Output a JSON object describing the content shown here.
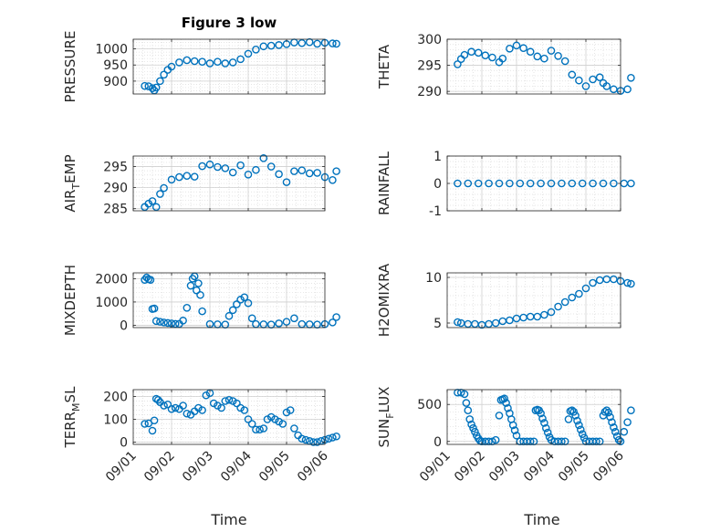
{
  "title": "Figure 3 low",
  "xlabel": "Time",
  "chart_data": [
    {
      "type": "scatter",
      "ylabel": "PRESSURE",
      "xlim": [
        "09/01",
        "09/06"
      ],
      "xticks": [
        "09/01",
        "09/02",
        "09/03",
        "09/04",
        "09/05",
        "09/06"
      ],
      "ylim": [
        860,
        1030
      ],
      "yticks": [
        900,
        950,
        1000
      ],
      "grid": true,
      "x": [
        0.3,
        0.4,
        0.5,
        0.55,
        0.6,
        0.7,
        0.8,
        0.9,
        1.0,
        1.2,
        1.4,
        1.6,
        1.8,
        2.0,
        2.2,
        2.4,
        2.6,
        2.8,
        3.0,
        3.2,
        3.4,
        3.6,
        3.8,
        4.0,
        4.2,
        4.4,
        4.6,
        4.8,
        5.0,
        5.2,
        5.3
      ],
      "y": [
        885,
        884,
        878,
        871,
        880,
        900,
        920,
        935,
        945,
        958,
        965,
        962,
        960,
        955,
        960,
        955,
        958,
        968,
        985,
        998,
        1008,
        1010,
        1012,
        1015,
        1020,
        1018,
        1021,
        1016,
        1019,
        1017,
        1016
      ]
    },
    {
      "type": "scatter",
      "ylabel": "THETA",
      "xlim": [
        "09/01",
        "09/06"
      ],
      "xticks": [
        "09/01",
        "09/02",
        "09/03",
        "09/04",
        "09/05",
        "09/06"
      ],
      "ylim": [
        289.5,
        300
      ],
      "yticks": [
        290,
        295,
        300
      ],
      "grid": true,
      "x": [
        0.3,
        0.4,
        0.5,
        0.7,
        0.9,
        1.1,
        1.3,
        1.5,
        1.6,
        1.8,
        2.0,
        2.2,
        2.4,
        2.6,
        2.8,
        3.0,
        3.2,
        3.4,
        3.6,
        3.8,
        4.0,
        4.2,
        4.4,
        4.5,
        4.6,
        4.8,
        5.0,
        5.2,
        5.3
      ],
      "y": [
        295.2,
        296.2,
        297.0,
        297.6,
        297.4,
        296.9,
        296.5,
        295.6,
        296.3,
        298.2,
        298.8,
        298.3,
        297.6,
        296.7,
        296.3,
        297.8,
        296.8,
        295.8,
        293.2,
        292.1,
        291.0,
        292.3,
        292.7,
        291.6,
        291.0,
        290.4,
        290.1,
        290.4,
        292.6
      ]
    },
    {
      "type": "scatter",
      "ylabel": "AIR_TEMP",
      "xlim": [
        "09/01",
        "09/06"
      ],
      "xticks": [
        "09/01",
        "09/02",
        "09/03",
        "09/04",
        "09/05",
        "09/06"
      ],
      "ylim": [
        284.5,
        297.5
      ],
      "yticks": [
        285,
        290,
        295
      ],
      "grid": true,
      "x": [
        0.3,
        0.4,
        0.5,
        0.6,
        0.7,
        0.8,
        1.0,
        1.2,
        1.4,
        1.6,
        1.8,
        2.0,
        2.2,
        2.4,
        2.6,
        2.8,
        3.0,
        3.2,
        3.4,
        3.6,
        3.8,
        4.0,
        4.2,
        4.4,
        4.6,
        4.8,
        5.0,
        5.2,
        5.3
      ],
      "y": [
        285.4,
        286.2,
        286.8,
        285.4,
        288.5,
        289.9,
        291.9,
        292.5,
        292.8,
        292.6,
        295.1,
        295.5,
        294.9,
        294.6,
        293.6,
        295.3,
        293.1,
        294.2,
        297.0,
        295.0,
        293.2,
        291.3,
        293.9,
        294.1,
        293.4,
        293.5,
        292.5,
        291.8,
        293.9
      ]
    },
    {
      "type": "scatter",
      "ylabel": "RAINFALL",
      "xlim": [
        "09/01",
        "09/06"
      ],
      "xticks": [
        "09/01",
        "09/02",
        "09/03",
        "09/04",
        "09/05",
        "09/06"
      ],
      "ylim": [
        -1,
        1
      ],
      "yticks": [
        -1,
        0,
        1
      ],
      "grid": true,
      "x": [
        0.3,
        0.6,
        0.9,
        1.2,
        1.5,
        1.8,
        2.1,
        2.4,
        2.7,
        3.0,
        3.3,
        3.6,
        3.9,
        4.2,
        4.5,
        4.8,
        5.1,
        5.3
      ],
      "y": [
        0,
        0,
        0,
        0,
        0,
        0,
        0,
        0,
        0,
        0,
        0,
        0,
        0,
        0,
        0,
        0,
        0,
        0
      ]
    },
    {
      "type": "scatter",
      "ylabel": "MIXDEPTH",
      "xlim": [
        "09/01",
        "09/06"
      ],
      "xticks": [
        "09/01",
        "09/02",
        "09/03",
        "09/04",
        "09/05",
        "09/06"
      ],
      "ylim": [
        -100,
        2250
      ],
      "yticks": [
        0,
        1000,
        2000
      ],
      "grid": true,
      "x": [
        0.3,
        0.35,
        0.4,
        0.45,
        0.5,
        0.55,
        0.6,
        0.7,
        0.8,
        0.9,
        1.0,
        1.1,
        1.2,
        1.3,
        1.4,
        1.5,
        1.55,
        1.6,
        1.65,
        1.7,
        1.75,
        1.8,
        2.0,
        2.2,
        2.4,
        2.5,
        2.6,
        2.7,
        2.8,
        2.9,
        3.0,
        3.1,
        3.2,
        3.4,
        3.6,
        3.8,
        4.0,
        4.2,
        4.4,
        4.6,
        4.8,
        5.0,
        5.2,
        5.3
      ],
      "y": [
        1950,
        2050,
        1980,
        1950,
        700,
        720,
        180,
        150,
        120,
        100,
        80,
        60,
        60,
        200,
        750,
        1700,
        2000,
        2100,
        1500,
        1800,
        1300,
        600,
        50,
        40,
        30,
        400,
        650,
        900,
        1100,
        1200,
        950,
        300,
        50,
        40,
        30,
        80,
        150,
        300,
        50,
        40,
        30,
        50,
        120,
        350
      ]
    },
    {
      "type": "scatter",
      "ylabel": "H2OMIXRA",
      "xlim": [
        "09/01",
        "09/06"
      ],
      "xticks": [
        "09/01",
        "09/02",
        "09/03",
        "09/04",
        "09/05",
        "09/06"
      ],
      "ylim": [
        4.5,
        10.5
      ],
      "yticks": [
        5,
        10
      ],
      "grid": true,
      "x": [
        0.3,
        0.4,
        0.6,
        0.8,
        1.0,
        1.2,
        1.4,
        1.6,
        1.8,
        2.0,
        2.2,
        2.4,
        2.6,
        2.8,
        3.0,
        3.2,
        3.4,
        3.6,
        3.8,
        4.0,
        4.2,
        4.4,
        4.6,
        4.8,
        5.0,
        5.2,
        5.3
      ],
      "y": [
        5.1,
        5.0,
        4.9,
        4.9,
        4.8,
        4.9,
        5.0,
        5.2,
        5.3,
        5.5,
        5.6,
        5.7,
        5.7,
        5.9,
        6.2,
        6.8,
        7.3,
        7.8,
        8.2,
        8.8,
        9.4,
        9.7,
        9.8,
        9.8,
        9.6,
        9.4,
        9.3
      ]
    },
    {
      "type": "scatter",
      "ylabel": "TERR_MSL",
      "xlim": [
        "09/01",
        "09/06"
      ],
      "xticks": [
        "09/01",
        "09/02",
        "09/03",
        "09/04",
        "09/05",
        "09/06"
      ],
      "ylim": [
        -10,
        230
      ],
      "yticks": [
        0,
        100,
        200
      ],
      "grid": true,
      "x": [
        0.3,
        0.4,
        0.5,
        0.55,
        0.6,
        0.65,
        0.7,
        0.8,
        0.9,
        1.0,
        1.1,
        1.2,
        1.3,
        1.4,
        1.5,
        1.6,
        1.7,
        1.8,
        1.9,
        2.0,
        2.1,
        2.2,
        2.3,
        2.4,
        2.5,
        2.6,
        2.7,
        2.8,
        2.9,
        3.0,
        3.1,
        3.2,
        3.3,
        3.4,
        3.5,
        3.6,
        3.7,
        3.8,
        3.9,
        4.0,
        4.1,
        4.2,
        4.3,
        4.4,
        4.5,
        4.6,
        4.7,
        4.8,
        4.9,
        5.0,
        5.1,
        5.2,
        5.3
      ],
      "y": [
        80,
        82,
        50,
        95,
        190,
        185,
        175,
        160,
        165,
        145,
        150,
        145,
        160,
        125,
        120,
        135,
        150,
        140,
        205,
        215,
        170,
        160,
        150,
        180,
        185,
        180,
        170,
        150,
        140,
        100,
        80,
        55,
        55,
        60,
        100,
        110,
        100,
        90,
        80,
        130,
        140,
        60,
        30,
        15,
        10,
        5,
        0,
        0,
        5,
        10,
        15,
        20,
        25
      ]
    },
    {
      "type": "scatter",
      "ylabel": "SUN_FLUX",
      "xlim": [
        "09/01",
        "09/06"
      ],
      "xticks": [
        "09/01",
        "09/02",
        "09/03",
        "09/04",
        "09/05",
        "09/06"
      ],
      "ylim": [
        -40,
        700
      ],
      "yticks": [
        0,
        500
      ],
      "grid": true,
      "x": [
        0.3,
        0.4,
        0.5,
        0.55,
        0.6,
        0.65,
        0.7,
        0.75,
        0.8,
        0.85,
        0.9,
        0.95,
        1.0,
        1.1,
        1.2,
        1.3,
        1.4,
        1.5,
        1.55,
        1.6,
        1.65,
        1.7,
        1.75,
        1.8,
        1.85,
        1.9,
        1.95,
        2.0,
        2.1,
        2.2,
        2.3,
        2.4,
        2.5,
        2.55,
        2.6,
        2.65,
        2.7,
        2.75,
        2.8,
        2.85,
        2.9,
        2.95,
        3.0,
        3.1,
        3.2,
        3.3,
        3.4,
        3.5,
        3.55,
        3.6,
        3.65,
        3.7,
        3.75,
        3.8,
        3.85,
        3.9,
        3.95,
        4.0,
        4.1,
        4.2,
        4.3,
        4.4,
        4.5,
        4.55,
        4.6,
        4.65,
        4.7,
        4.75,
        4.8,
        4.85,
        4.9,
        4.95,
        5.0,
        5.1,
        5.2,
        5.3
      ],
      "y": [
        660,
        660,
        640,
        520,
        420,
        300,
        230,
        180,
        130,
        80,
        40,
        10,
        0,
        0,
        0,
        0,
        20,
        350,
        560,
        570,
        580,
        520,
        450,
        380,
        300,
        220,
        150,
        80,
        0,
        0,
        0,
        0,
        0,
        420,
        430,
        420,
        380,
        310,
        250,
        180,
        120,
        60,
        20,
        0,
        0,
        0,
        0,
        300,
        410,
        420,
        400,
        350,
        280,
        220,
        160,
        100,
        50,
        0,
        0,
        0,
        0,
        0,
        350,
        400,
        420,
        390,
        330,
        260,
        190,
        130,
        70,
        20,
        0,
        130,
        260,
        420
      ]
    }
  ],
  "colors": {
    "marker": "#0072BD",
    "axis": "#262626",
    "grid": "#dcdcdc"
  }
}
